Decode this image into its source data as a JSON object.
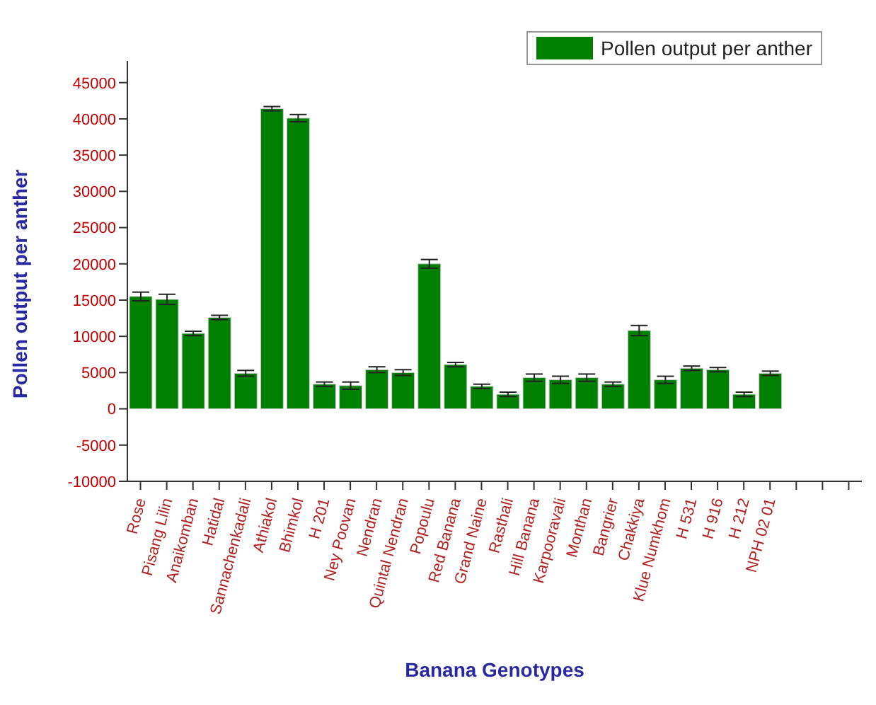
{
  "chart_data": {
    "type": "bar",
    "xlabel": "Banana Genotypes",
    "ylabel": "Pollen output per anther",
    "categories": [
      "Rose",
      "Pisang Lilin",
      "Anaikomban",
      "Hatidal",
      "Sannachenkadali",
      "Athiakol",
      "Bhimkol",
      "H 201",
      "Ney Poovan",
      "Nendran",
      "Quintal Nendran",
      "Popoulu",
      "Red Banana",
      "Grand Naine",
      "Rasthali",
      "Hill Banana",
      "Karpooravali",
      "Monthan",
      "Bangrier",
      "Chakkiya",
      "Klue Numkhom",
      "H 531",
      "H 916",
      "H 212",
      "NPH 02 01",
      null,
      null,
      null
    ],
    "series": [
      {
        "name": "Pollen output per anther",
        "color": "#008000",
        "values": [
          15500,
          15100,
          10400,
          12600,
          4900,
          41400,
          40100,
          3400,
          3200,
          5400,
          5000,
          20000,
          6100,
          3100,
          2000,
          4300,
          4000,
          4300,
          3400,
          10800,
          4000,
          5600,
          5400,
          2000,
          4900,
          null,
          null,
          null
        ],
        "errors": [
          600,
          700,
          300,
          300,
          400,
          300,
          500,
          300,
          500,
          400,
          400,
          600,
          300,
          300,
          300,
          500,
          500,
          500,
          300,
          700,
          500,
          300,
          300,
          300,
          300,
          null,
          null,
          null
        ]
      }
    ],
    "ylim": [
      -10000,
      48000
    ],
    "yticks": [
      -10000,
      -5000,
      0,
      5000,
      10000,
      15000,
      20000,
      25000,
      30000,
      35000,
      40000,
      45000
    ],
    "grid": false,
    "legend": "top right"
  }
}
